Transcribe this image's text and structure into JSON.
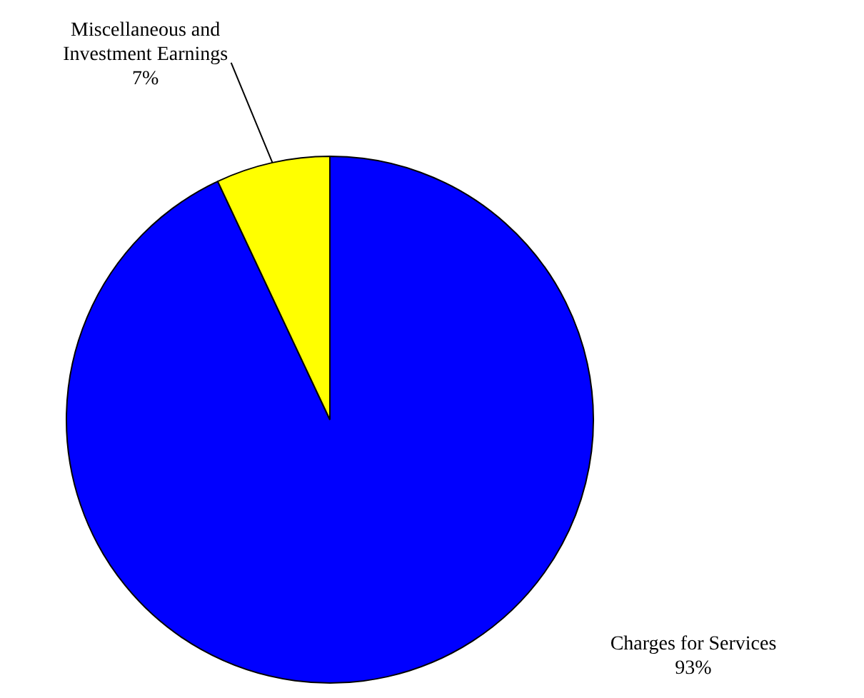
{
  "chart_data": {
    "type": "pie",
    "categories": [
      "Charges for Services",
      "Miscellaneous and Investment Earnings"
    ],
    "values": [
      93,
      7
    ],
    "colors": [
      "#0000ff",
      "#ffff00"
    ],
    "value_labels": [
      "93%",
      "7%"
    ],
    "legend": false
  }
}
